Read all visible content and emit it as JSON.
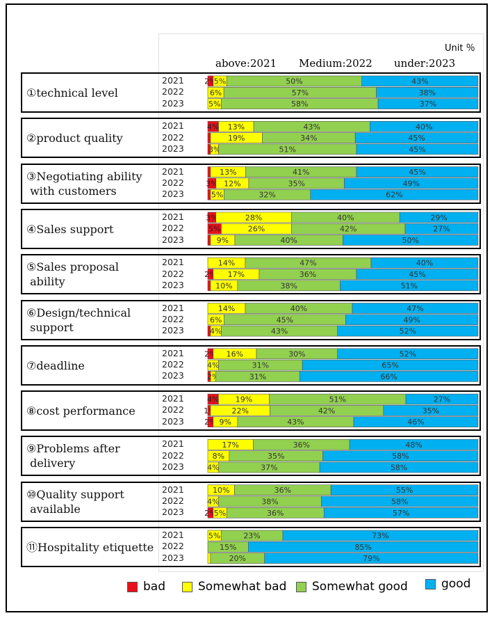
{
  "unit_label": "Unit ％",
  "year_note": {
    "above": "above:2021",
    "medium": "Medium:2022",
    "under": "under:2023"
  },
  "colors": {
    "bad": "#e8111a",
    "somewhat_bad": "#ffff00",
    "somewhat_good": "#92d050",
    "good": "#00b0f0"
  },
  "legend": [
    "bad",
    "Somewhat bad",
    "Somewhat good",
    "good"
  ],
  "chart_data": {
    "type": "bar",
    "orientation": "horizontal-stacked-100",
    "unit": "%",
    "series_names": [
      "bad",
      "Somewhat bad",
      "Somewhat good",
      "good"
    ],
    "groups": [
      {
        "label": "①technical level",
        "years": [
          {
            "year": "2021",
            "values": [
              2,
              5,
              50,
              43
            ],
            "labels": [
              "2%",
              "5%",
              "50%",
              "43%"
            ]
          },
          {
            "year": "2022",
            "values": [
              0,
              6,
              57,
              38
            ],
            "labels": [
              "",
              "6%",
              "57%",
              "38%"
            ]
          },
          {
            "year": "2023",
            "values": [
              0,
              5,
              58,
              37
            ],
            "labels": [
              "",
              "5%",
              "58%",
              "37%"
            ]
          }
        ]
      },
      {
        "label": "②product quality",
        "years": [
          {
            "year": "2021",
            "values": [
              4,
              13,
              43,
              40
            ],
            "labels": [
              "4%",
              "13%",
              "43%",
              "40%"
            ]
          },
          {
            "year": "2022",
            "values": [
              1,
              19,
              34,
              45
            ],
            "labels": [
              "",
              "19%",
              "34%",
              "45%"
            ]
          },
          {
            "year": "2023",
            "values": [
              1,
              3,
              51,
              45
            ],
            "labels": [
              "",
              "3%",
              "51%",
              "45%"
            ]
          }
        ]
      },
      {
        "label": "③Negotiating ability\n with customers",
        "years": [
          {
            "year": "2021",
            "values": [
              1,
              13,
              41,
              45
            ],
            "labels": [
              "",
              "13%",
              "41%",
              "45%"
            ]
          },
          {
            "year": "2022",
            "values": [
              3,
              12,
              35,
              49
            ],
            "labels": [
              "3%",
              "12%",
              "35%",
              "49%"
            ]
          },
          {
            "year": "2023",
            "values": [
              1,
              5,
              32,
              62
            ],
            "labels": [
              "",
              "5%",
              "32%",
              "62%"
            ]
          }
        ]
      },
      {
        "label": "④Sales support",
        "years": [
          {
            "year": "2021",
            "values": [
              3,
              28,
              40,
              29
            ],
            "labels": [
              "3%",
              "28%",
              "40%",
              "29%"
            ]
          },
          {
            "year": "2022",
            "values": [
              5,
              26,
              42,
              27
            ],
            "labels": [
              "5%",
              "26%",
              "42%",
              "27%"
            ]
          },
          {
            "year": "2023",
            "values": [
              1,
              9,
              40,
              50
            ],
            "labels": [
              "",
              "9%",
              "40%",
              "50%"
            ]
          }
        ]
      },
      {
        "label": "⑤Sales proposal\n ability",
        "years": [
          {
            "year": "2021",
            "values": [
              0,
              14,
              47,
              40
            ],
            "labels": [
              "",
              "14%",
              "47%",
              "40%"
            ]
          },
          {
            "year": "2022",
            "values": [
              2,
              17,
              36,
              45
            ],
            "labels": [
              "2%",
              "17%",
              "36%",
              "45%"
            ]
          },
          {
            "year": "2023",
            "values": [
              1,
              10,
              38,
              51
            ],
            "labels": [
              "",
              "10%",
              "38%",
              "51%"
            ]
          }
        ]
      },
      {
        "label": "⑥Design/technical\n support",
        "years": [
          {
            "year": "2021",
            "values": [
              0,
              14,
              40,
              47
            ],
            "labels": [
              "",
              "14%",
              "40%",
              "47%"
            ]
          },
          {
            "year": "2022",
            "values": [
              0,
              6,
              45,
              49
            ],
            "labels": [
              "",
              "6%",
              "45%",
              "49%"
            ]
          },
          {
            "year": "2023",
            "values": [
              1,
              4,
              43,
              52
            ],
            "labels": [
              "",
              "4%",
              "43%",
              "52%"
            ]
          }
        ]
      },
      {
        "label": "⑦deadline",
        "years": [
          {
            "year": "2021",
            "values": [
              2,
              16,
              30,
              52
            ],
            "labels": [
              "2%",
              "16%",
              "30%",
              "52%"
            ]
          },
          {
            "year": "2022",
            "values": [
              0,
              4,
              31,
              65
            ],
            "labels": [
              "",
              "4%",
              "31%",
              "65%"
            ]
          },
          {
            "year": "2023",
            "values": [
              1,
              2,
              31,
              66
            ],
            "labels": [
              "",
              "2%",
              "31%",
              "66%"
            ]
          }
        ]
      },
      {
        "label": "⑧cost performance",
        "years": [
          {
            "year": "2021",
            "values": [
              4,
              19,
              51,
              27
            ],
            "labels": [
              "4%",
              "19%",
              "51%",
              "27%"
            ]
          },
          {
            "year": "2022",
            "values": [
              1,
              22,
              42,
              35
            ],
            "labels": [
              "1%",
              "22%",
              "42%",
              "35%"
            ]
          },
          {
            "year": "2023",
            "values": [
              2,
              9,
              43,
              46
            ],
            "labels": [
              "2%",
              "9%",
              "43%",
              "46%"
            ]
          }
        ]
      },
      {
        "label": "⑨Problems after\n delivery",
        "years": [
          {
            "year": "2021",
            "values": [
              0,
              17,
              36,
              48
            ],
            "labels": [
              "",
              "17%",
              "36%",
              "48%"
            ]
          },
          {
            "year": "2022",
            "values": [
              0,
              8,
              35,
              58
            ],
            "labels": [
              "",
              "8%",
              "35%",
              "58%"
            ]
          },
          {
            "year": "2023",
            "values": [
              0,
              4,
              37,
              58
            ],
            "labels": [
              "",
              "4%",
              "37%",
              "58%"
            ]
          }
        ]
      },
      {
        "label": "⑩Quality support\n available",
        "years": [
          {
            "year": "2021",
            "values": [
              0,
              10,
              36,
              55
            ],
            "labels": [
              "",
              "10%",
              "36%",
              "55%"
            ]
          },
          {
            "year": "2022",
            "values": [
              0,
              4,
              38,
              58
            ],
            "labels": [
              "",
              "4%",
              "38%",
              "58%"
            ]
          },
          {
            "year": "2023",
            "values": [
              2,
              5,
              36,
              57
            ],
            "labels": [
              "2%",
              "5%",
              "36%",
              "57%"
            ]
          }
        ]
      },
      {
        "label": "⑪Hospitality etiquette",
        "years": [
          {
            "year": "2021",
            "values": [
              0,
              5,
              23,
              73
            ],
            "labels": [
              "",
              "5%",
              "23%",
              "73%"
            ]
          },
          {
            "year": "2022",
            "values": [
              0,
              0,
              15,
              85
            ],
            "labels": [
              "",
              "",
              "15%",
              "85%"
            ]
          },
          {
            "year": "2023",
            "values": [
              0,
              1,
              20,
              79
            ],
            "labels": [
              "",
              "",
              "20%",
              "79%"
            ]
          }
        ]
      }
    ]
  }
}
